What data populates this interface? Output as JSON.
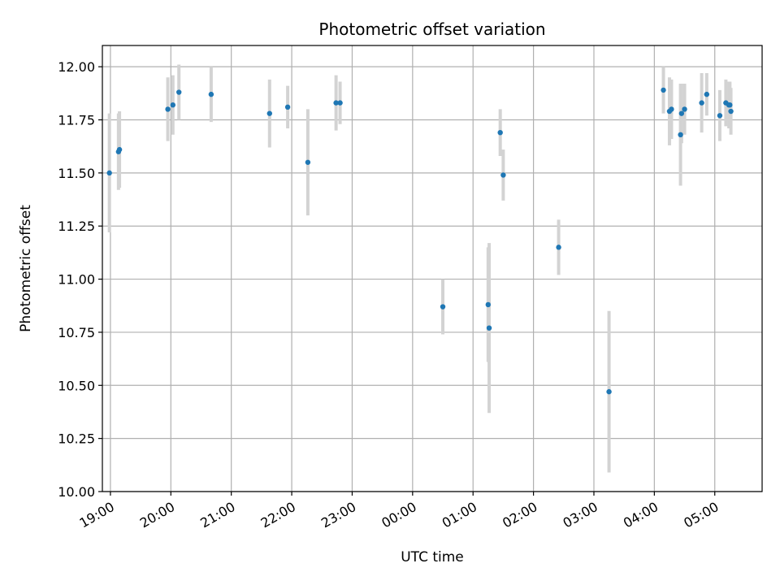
{
  "chart_data": {
    "type": "scatter",
    "title": "Photometric offset variation",
    "xlabel": "UTC time",
    "ylabel": "Photometric offset",
    "ylim": [
      10.0,
      12.1
    ],
    "xlim": [
      "18:52",
      "05:47"
    ],
    "grid": true,
    "x_ticks": [
      "19:00",
      "20:00",
      "21:00",
      "22:00",
      "23:00",
      "00:00",
      "01:00",
      "02:00",
      "03:00",
      "04:00",
      "05:00"
    ],
    "y_ticks": [
      "10.00",
      "10.25",
      "10.50",
      "10.75",
      "11.00",
      "11.25",
      "11.50",
      "11.75",
      "12.00"
    ],
    "colors": {
      "point": "#1f77b4",
      "errorbar": "#d3d3d3",
      "grid": "#b0b0b0"
    },
    "points": [
      {
        "time": "18:59",
        "y": 11.5,
        "yerr": 0.28
      },
      {
        "time": "19:08",
        "y": 11.6,
        "yerr": 0.18
      },
      {
        "time": "19:09",
        "y": 11.61,
        "yerr": 0.18
      },
      {
        "time": "19:57",
        "y": 11.8,
        "yerr": 0.15
      },
      {
        "time": "20:02",
        "y": 11.82,
        "yerr": 0.14
      },
      {
        "time": "20:08",
        "y": 11.88,
        "yerr": 0.13
      },
      {
        "time": "20:40",
        "y": 11.87,
        "yerr": 0.13
      },
      {
        "time": "21:38",
        "y": 11.78,
        "yerr": 0.16
      },
      {
        "time": "21:56",
        "y": 11.81,
        "yerr": 0.1
      },
      {
        "time": "22:16",
        "y": 11.55,
        "yerr": 0.25
      },
      {
        "time": "22:44",
        "y": 11.83,
        "yerr": 0.13
      },
      {
        "time": "22:48",
        "y": 11.83,
        "yerr": 0.1
      },
      {
        "time": "00:30",
        "y": 10.87,
        "yerr": 0.13
      },
      {
        "time": "01:15",
        "y": 10.88,
        "yerr": 0.27
      },
      {
        "time": "01:16",
        "y": 10.77,
        "yerr": 0.4
      },
      {
        "time": "01:27",
        "y": 11.69,
        "yerr": 0.11
      },
      {
        "time": "01:30",
        "y": 11.49,
        "yerr": 0.12
      },
      {
        "time": "02:25",
        "y": 11.15,
        "yerr": 0.13
      },
      {
        "time": "03:15",
        "y": 10.47,
        "yerr": 0.38
      },
      {
        "time": "04:09",
        "y": 11.89,
        "yerr": 0.11
      },
      {
        "time": "04:15",
        "y": 11.79,
        "yerr": 0.16
      },
      {
        "time": "04:17",
        "y": 11.8,
        "yerr": 0.14
      },
      {
        "time": "04:26",
        "y": 11.68,
        "yerr": 0.24
      },
      {
        "time": "04:27",
        "y": 11.78,
        "yerr": 0.14
      },
      {
        "time": "04:30",
        "y": 11.8,
        "yerr": 0.12
      },
      {
        "time": "04:47",
        "y": 11.83,
        "yerr": 0.14
      },
      {
        "time": "04:52",
        "y": 11.87,
        "yerr": 0.1
      },
      {
        "time": "05:05",
        "y": 11.77,
        "yerr": 0.12
      },
      {
        "time": "05:11",
        "y": 11.83,
        "yerr": 0.11
      },
      {
        "time": "05:14",
        "y": 11.82,
        "yerr": 0.11
      },
      {
        "time": "05:15",
        "y": 11.82,
        "yerr": 0.11
      },
      {
        "time": "05:16",
        "y": 11.79,
        "yerr": 0.11
      }
    ]
  }
}
